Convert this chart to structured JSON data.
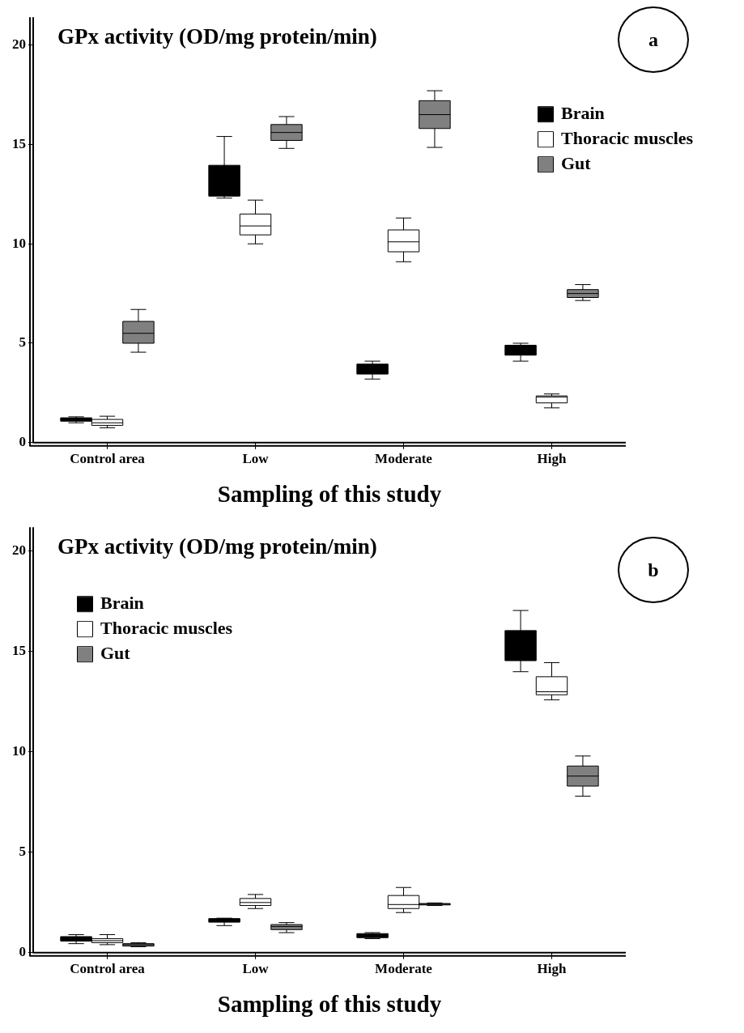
{
  "chart_data": [
    {
      "type": "box",
      "ylabel": "GPx activity (OD/mg protein/min)",
      "xlabel": "Sampling of this study",
      "annotations": [
        "a"
      ],
      "categories": [
        "Control area",
        "Low",
        "Moderate",
        "High"
      ],
      "ylim": [
        0,
        21.4
      ],
      "yticks": [
        0,
        5,
        10,
        15,
        20
      ],
      "grid": false,
      "legend": "top right",
      "series": [
        {
          "name": "Brain",
          "color": "#000000",
          "boxes": [
            {
              "low": 1.0,
              "q1": 1.08,
              "median": 1.15,
              "q3": 1.25,
              "high": 1.3
            },
            {
              "low": 12.3,
              "q1": 12.4,
              "median": 12.5,
              "q3": 13.95,
              "high": 15.4
            },
            {
              "low": 3.2,
              "q1": 3.45,
              "median": 3.7,
              "q3": 3.95,
              "high": 4.1
            },
            {
              "low": 4.1,
              "q1": 4.4,
              "median": 4.65,
              "q3": 4.9,
              "high": 5.0
            }
          ]
        },
        {
          "name": "Thoracic muscles",
          "color": "#ffffff",
          "boxes": [
            {
              "low": 0.75,
              "q1": 0.87,
              "median": 1.0,
              "q3": 1.17,
              "high": 1.33
            },
            {
              "low": 10.0,
              "q1": 10.45,
              "median": 10.9,
              "q3": 11.5,
              "high": 12.2
            },
            {
              "low": 9.1,
              "q1": 9.6,
              "median": 10.1,
              "q3": 10.7,
              "high": 11.3
            },
            {
              "low": 1.75,
              "q1": 2.0,
              "median": 2.3,
              "q3": 2.35,
              "high": 2.45
            }
          ]
        },
        {
          "name": "Gut",
          "color": "#808080",
          "boxes": [
            {
              "low": 4.55,
              "q1": 5.0,
              "median": 5.5,
              "q3": 6.1,
              "high": 6.7
            },
            {
              "low": 14.8,
              "q1": 15.2,
              "median": 15.6,
              "q3": 16.0,
              "high": 16.4
            },
            {
              "low": 14.85,
              "q1": 15.8,
              "median": 16.5,
              "q3": 17.2,
              "high": 17.7
            },
            {
              "low": 7.15,
              "q1": 7.3,
              "median": 7.5,
              "q3": 7.7,
              "high": 7.95
            }
          ]
        }
      ]
    },
    {
      "type": "box",
      "ylabel": "GPx activity (OD/mg protein/min)",
      "xlabel": "Sampling of this study",
      "annotations": [
        "b"
      ],
      "categories": [
        "Control area",
        "Low",
        "Moderate",
        "High"
      ],
      "ylim": [
        0,
        21.2
      ],
      "yticks": [
        0,
        5,
        10,
        15,
        20
      ],
      "grid": false,
      "legend": "top left",
      "series": [
        {
          "name": "Brain",
          "color": "#000000",
          "boxes": [
            {
              "low": 0.45,
              "q1": 0.58,
              "median": 0.7,
              "q3": 0.8,
              "high": 0.9
            },
            {
              "low": 1.35,
              "q1": 1.52,
              "median": 1.6,
              "q3": 1.7,
              "high": 1.72
            },
            {
              "low": 0.7,
              "q1": 0.75,
              "median": 0.85,
              "q3": 0.95,
              "high": 1.0
            },
            {
              "low": 14.0,
              "q1": 14.55,
              "median": 15.2,
              "q3": 16.05,
              "high": 17.05
            }
          ]
        },
        {
          "name": "Thoracic muscles",
          "color": "#ffffff",
          "boxes": [
            {
              "low": 0.4,
              "q1": 0.5,
              "median": 0.6,
              "q3": 0.7,
              "high": 0.9
            },
            {
              "low": 2.2,
              "q1": 2.35,
              "median": 2.5,
              "q3": 2.7,
              "high": 2.9
            },
            {
              "low": 2.0,
              "q1": 2.2,
              "median": 2.4,
              "q3": 2.85,
              "high": 3.25
            },
            {
              "low": 12.6,
              "q1": 12.85,
              "median": 13.0,
              "q3": 13.75,
              "high": 14.45
            }
          ]
        },
        {
          "name": "Gut",
          "color": "#808080",
          "boxes": [
            {
              "low": 0.3,
              "q1": 0.33,
              "median": 0.4,
              "q3": 0.45,
              "high": 0.5
            },
            {
              "low": 1.0,
              "q1": 1.15,
              "median": 1.3,
              "q3": 1.4,
              "high": 1.5
            },
            {
              "low": 2.35,
              "q1": 2.38,
              "median": 2.42,
              "q3": 2.45,
              "high": 2.48
            },
            {
              "low": 7.8,
              "q1": 8.3,
              "median": 8.8,
              "q3": 9.3,
              "high": 9.8
            }
          ]
        }
      ]
    }
  ]
}
